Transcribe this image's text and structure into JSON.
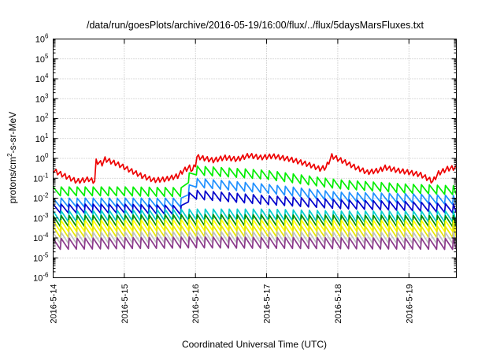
{
  "chart_data": {
    "type": "line",
    "title": "/data/run/goesPlots/archive/2016-05-19/16:00/flux/../flux/5daysMarsFluxes.txt",
    "xlabel": "Coordinated Universal Time (UTC)",
    "ylabel_parts": [
      "protons/cm",
      "2",
      "-s-sr-MeV"
    ],
    "yscale": "log",
    "ylim_exponents": [
      -6,
      6
    ],
    "y_tick_labels": [
      {
        "base": "10",
        "exp": "-6"
      },
      {
        "base": "10",
        "exp": "-5"
      },
      {
        "base": "10",
        "exp": "-4"
      },
      {
        "base": "10",
        "exp": "-3"
      },
      {
        "base": "10",
        "exp": "-2"
      },
      {
        "base": "10",
        "exp": "-1"
      },
      {
        "base": "10",
        "exp": "0"
      },
      {
        "base": "10",
        "exp": "1"
      },
      {
        "base": "10",
        "exp": "2"
      },
      {
        "base": "10",
        "exp": "3"
      },
      {
        "base": "10",
        "exp": "4"
      },
      {
        "base": "10",
        "exp": "5"
      },
      {
        "base": "10",
        "exp": "6"
      }
    ],
    "x_range_days": [
      "2016-05-14T00:00",
      "2016-05-19T16:00"
    ],
    "x_tick_labels": [
      "2016-5-14",
      "2016-5-15",
      "2016-5-16",
      "2016-5-17",
      "2016-5-18",
      "2016-5-19"
    ],
    "grid": true,
    "legend": "none",
    "sawtooth_period_hours": 2.7,
    "series": [
      {
        "color": "#ee0000",
        "values": [
          [
            "2016-05-14T00:00",
            0.25
          ],
          [
            "2016-05-14T04:00",
            0.13
          ],
          [
            "2016-05-14T08:00",
            0.07
          ],
          [
            "2016-05-14T12:00",
            0.09
          ],
          [
            "2016-05-14T14:00",
            0.07
          ],
          [
            "2016-05-14T14:30",
            0.7
          ],
          [
            "2016-05-14T16:30",
            0.55
          ],
          [
            "2016-05-14T17:30",
            0.9
          ],
          [
            "2016-05-14T22:00",
            0.5
          ],
          [
            "2016-05-15T02:00",
            0.25
          ],
          [
            "2016-05-15T06:00",
            0.13
          ],
          [
            "2016-05-15T10:00",
            0.08
          ],
          [
            "2016-05-15T14:00",
            0.09
          ],
          [
            "2016-05-15T18:00",
            0.13
          ],
          [
            "2016-05-15T20:00",
            0.25
          ],
          [
            "2016-05-15T22:00",
            0.35
          ],
          [
            "2016-05-15T23:00",
            0.25
          ],
          [
            "2016-05-16T00:00",
            0.5
          ],
          [
            "2016-05-16T00:30",
            1.2
          ],
          [
            "2016-05-16T06:00",
            0.8
          ],
          [
            "2016-05-16T10:00",
            1.1
          ],
          [
            "2016-05-16T14:00",
            0.9
          ],
          [
            "2016-05-16T18:00",
            1.4
          ],
          [
            "2016-05-16T22:00",
            1.1
          ],
          [
            "2016-05-17T02:00",
            1.3
          ],
          [
            "2016-05-17T08:00",
            0.9
          ],
          [
            "2016-05-17T14:00",
            0.5
          ],
          [
            "2016-05-17T18:00",
            0.3
          ],
          [
            "2016-05-17T20:00",
            0.35
          ],
          [
            "2016-05-17T22:00",
            1.3
          ],
          [
            "2016-05-18T02:00",
            0.7
          ],
          [
            "2016-05-18T06:00",
            0.35
          ],
          [
            "2016-05-18T10:00",
            0.2
          ],
          [
            "2016-05-18T14:00",
            0.25
          ],
          [
            "2016-05-18T16:00",
            0.35
          ],
          [
            "2016-05-18T20:00",
            0.25
          ],
          [
            "2016-05-19T00:00",
            0.2
          ],
          [
            "2016-05-19T04:00",
            0.15
          ],
          [
            "2016-05-19T08:00",
            0.07
          ],
          [
            "2016-05-19T10:00",
            0.18
          ],
          [
            "2016-05-19T13:00",
            0.3
          ],
          [
            "2016-05-19T16:00",
            0.35
          ]
        ]
      },
      {
        "color": "#00ee00",
        "values": [
          [
            "2016-05-14T00:00",
            0.022
          ],
          [
            "2016-05-15T00:00",
            0.022
          ],
          [
            "2016-05-15T20:00",
            0.02
          ],
          [
            "2016-05-15T21:00",
            0.08
          ],
          [
            "2016-05-16T00:00",
            0.25
          ],
          [
            "2016-05-17T00:00",
            0.15
          ],
          [
            "2016-05-18T00:00",
            0.05
          ],
          [
            "2016-05-19T00:00",
            0.03
          ],
          [
            "2016-05-19T16:00",
            0.025
          ]
        ]
      },
      {
        "color": "#1e90ff",
        "values": [
          [
            "2016-05-14T00:00",
            0.006
          ],
          [
            "2016-05-15T00:00",
            0.006
          ],
          [
            "2016-05-15T20:00",
            0.006
          ],
          [
            "2016-05-15T21:00",
            0.02
          ],
          [
            "2016-05-16T00:00",
            0.06
          ],
          [
            "2016-05-17T00:00",
            0.03
          ],
          [
            "2016-05-18T00:00",
            0.012
          ],
          [
            "2016-05-19T00:00",
            0.01
          ],
          [
            "2016-05-19T16:00",
            0.008
          ]
        ]
      },
      {
        "color": "#0000cc",
        "values": [
          [
            "2016-05-14T00:00",
            0.003
          ],
          [
            "2016-05-15T00:00",
            0.003
          ],
          [
            "2016-05-15T20:00",
            0.0025
          ],
          [
            "2016-05-15T21:00",
            0.01
          ],
          [
            "2016-05-16T00:00",
            0.015
          ],
          [
            "2016-05-17T00:00",
            0.008
          ],
          [
            "2016-05-18T00:00",
            0.005
          ],
          [
            "2016-05-19T00:00",
            0.004
          ],
          [
            "2016-05-19T16:00",
            0.003
          ]
        ]
      },
      {
        "color": "#00cdcd",
        "values": [
          [
            "2016-05-14T00:00",
            0.0012
          ],
          [
            "2016-05-16T00:00",
            0.0015
          ],
          [
            "2016-05-17T00:00",
            0.0015
          ],
          [
            "2016-05-18T00:00",
            0.0012
          ],
          [
            "2016-05-19T16:00",
            0.0012
          ]
        ]
      },
      {
        "color": "#008b00",
        "values": [
          [
            "2016-05-14T00:00",
            0.0007
          ],
          [
            "2016-05-16T00:00",
            0.0008
          ],
          [
            "2016-05-19T16:00",
            0.0007
          ]
        ]
      },
      {
        "color": "#ffff00",
        "values": [
          [
            "2016-05-14T00:00",
            0.0004
          ],
          [
            "2016-05-16T00:00",
            0.00045
          ],
          [
            "2016-05-19T16:00",
            0.0004
          ]
        ]
      },
      {
        "color": "#e6e600",
        "values": [
          [
            "2016-05-14T00:00",
            0.0002
          ],
          [
            "2016-05-16T00:00",
            0.00022
          ],
          [
            "2016-05-19T16:00",
            0.0002
          ]
        ]
      },
      {
        "color": "#c0c0c0",
        "values": [
          [
            "2016-05-14T00:00",
            0.0001
          ],
          [
            "2016-05-16T00:00",
            0.00011
          ],
          [
            "2016-05-19T16:00",
            0.0001
          ]
        ]
      },
      {
        "color": "#8b3a8b",
        "values": [
          [
            "2016-05-14T00:00",
            5e-05
          ],
          [
            "2016-05-16T00:00",
            6e-05
          ],
          [
            "2016-05-19T16:00",
            5e-05
          ]
        ]
      }
    ]
  }
}
